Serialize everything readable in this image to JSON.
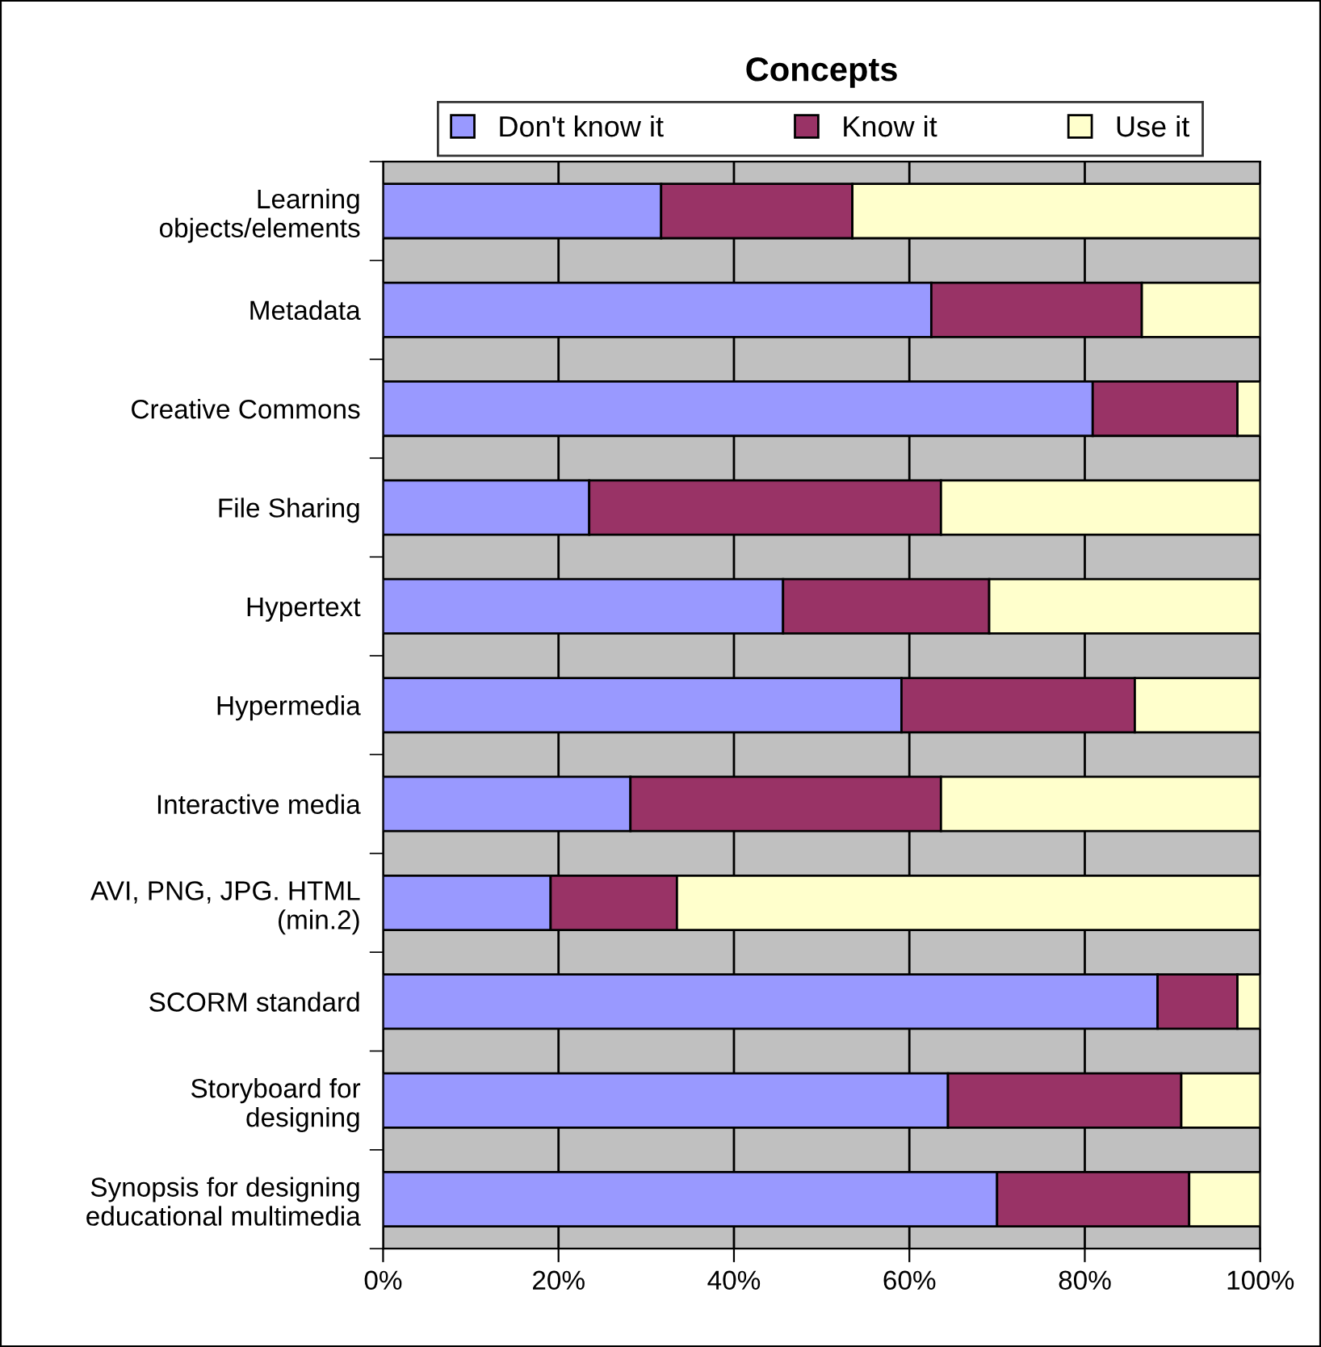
{
  "chart_data": {
    "type": "bar",
    "title": "Concepts",
    "orientation": "horizontal",
    "stacked": true,
    "categories": [
      "Learning\nobjects/elements",
      "Metadata",
      "Creative Commons",
      "File Sharing",
      "Hypertext",
      "Hypermedia",
      "Interactive media",
      "AVI, PNG, JPG. HTML\n(min.2)",
      "SCORM standard",
      "Storyboard for\ndesigning",
      "Synopsis for designing\neducational multimedia"
    ],
    "series": [
      {
        "name": "Don't know it",
        "color": "#9999ff",
        "values": [
          31.7,
          62.5,
          80.9,
          23.5,
          45.6,
          59.1,
          28.2,
          19.1,
          88.3,
          64.4,
          70.0
        ]
      },
      {
        "name": "Know it",
        "color": "#993366",
        "values": [
          21.8,
          24.0,
          16.5,
          40.1,
          23.5,
          26.6,
          35.4,
          14.4,
          9.1,
          26.6,
          21.9
        ]
      },
      {
        "name": "Use it",
        "color": "#ffffcc",
        "values": [
          46.5,
          13.5,
          2.6,
          36.4,
          30.9,
          14.3,
          36.4,
          66.5,
          2.6,
          9.0,
          8.1
        ]
      }
    ],
    "xlim": [
      0,
      100
    ],
    "xticks": [
      {
        "value": 0,
        "label": "0%"
      },
      {
        "value": 20,
        "label": "20%"
      },
      {
        "value": 40,
        "label": "40%"
      },
      {
        "value": 60,
        "label": "60%"
      },
      {
        "value": 80,
        "label": "80%"
      },
      {
        "value": 100,
        "label": "100%"
      }
    ],
    "grid": "x",
    "legend": "top"
  }
}
